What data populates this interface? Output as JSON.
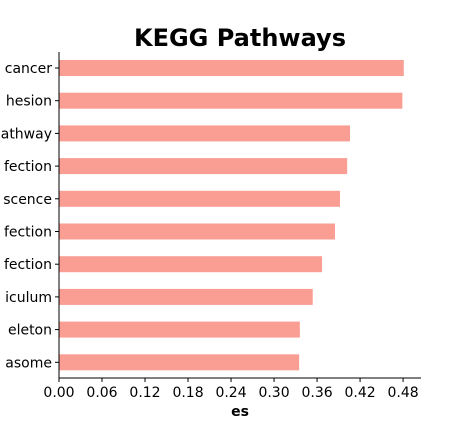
{
  "chart_data": {
    "type": "bar",
    "orientation": "horizontal",
    "title": "KEGG Pathways",
    "xlabel": "es",
    "ylabel": "",
    "categories": [
      "cancer",
      "hesion",
      "athway",
      "fection",
      "scence",
      "fection",
      "fection",
      "iculum",
      "eleton",
      "asome"
    ],
    "values": [
      0.481,
      0.479,
      0.406,
      0.402,
      0.392,
      0.385,
      0.367,
      0.354,
      0.336,
      0.335
    ],
    "xlim": [
      0,
      0.505
    ],
    "xticks": [
      "0.00",
      "0.06",
      "0.12",
      "0.18",
      "0.24",
      "0.30",
      "0.36",
      "0.42",
      "0.48"
    ],
    "bar_color": "#fa9e94",
    "grid": false,
    "legend": "none"
  }
}
